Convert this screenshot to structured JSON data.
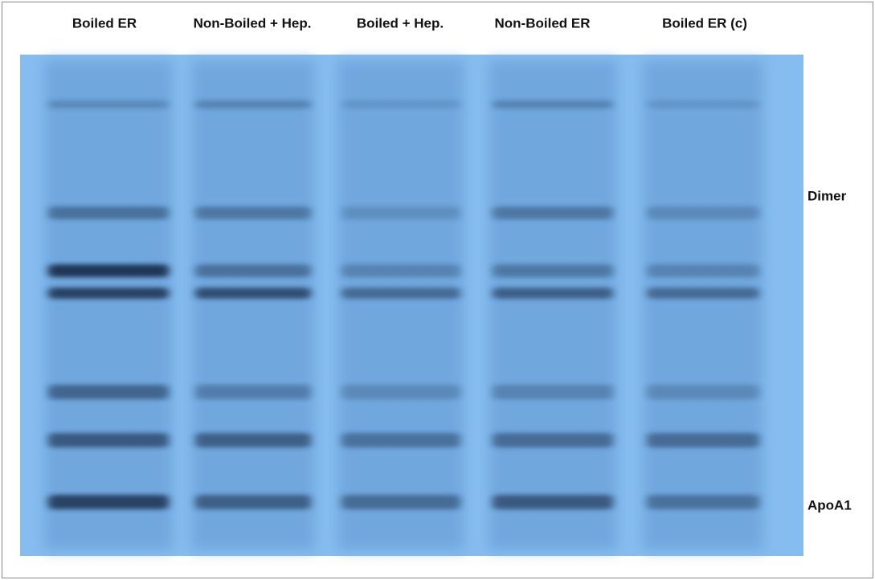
{
  "lane_labels": [
    "Boiled ER",
    "Non-Boiled + Hep.",
    "Boiled + Hep.",
    "Non-Boiled ER",
    "Boiled ER (c)"
  ],
  "band_labels": [
    "Dimer",
    "ApoA1"
  ]
}
